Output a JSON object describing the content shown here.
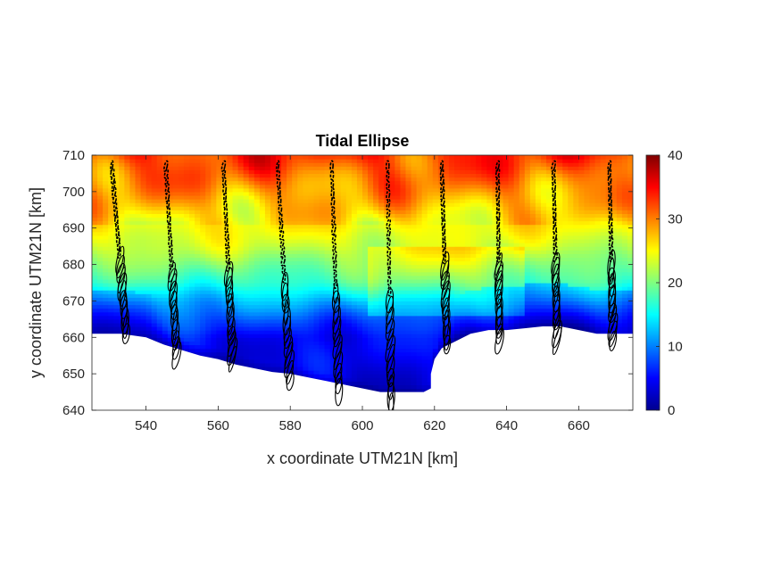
{
  "chart_data": {
    "type": "heatmap",
    "title": "Tidal Ellipse",
    "xlabel": "x coordinate UTM21N [km]",
    "ylabel": "y coordinate UTM21N [km]",
    "xlim": [
      525,
      675
    ],
    "ylim": [
      640,
      710
    ],
    "xticks": [
      540,
      560,
      580,
      600,
      620,
      640,
      660
    ],
    "yticks": [
      640,
      650,
      660,
      670,
      680,
      690,
      700,
      710
    ],
    "colorbar": {
      "colormap": "jet",
      "clim": [
        0,
        40
      ],
      "ticks": [
        0,
        10,
        20,
        30,
        40
      ]
    },
    "coastline": [
      [
        525,
        661
      ],
      [
        533,
        661
      ],
      [
        540,
        660
      ],
      [
        545,
        658
      ],
      [
        550,
        656.5
      ],
      [
        555,
        655
      ],
      [
        560,
        654
      ],
      [
        565,
        652.5
      ],
      [
        570,
        651.5
      ],
      [
        575,
        650.5
      ],
      [
        580,
        650
      ],
      [
        585,
        649
      ],
      [
        590,
        648
      ],
      [
        595,
        647
      ],
      [
        600,
        646
      ],
      [
        605,
        645
      ],
      [
        609,
        645
      ],
      [
        613,
        645
      ],
      [
        617,
        645
      ],
      [
        619,
        646
      ],
      [
        619,
        650
      ],
      [
        620,
        654
      ],
      [
        622,
        657
      ],
      [
        626,
        659
      ],
      [
        630,
        661
      ],
      [
        635,
        662
      ],
      [
        640,
        662
      ],
      [
        645,
        662.5
      ],
      [
        650,
        663
      ],
      [
        655,
        663
      ],
      [
        660,
        662
      ],
      [
        665,
        661
      ],
      [
        675,
        661
      ]
    ],
    "depth_field": {
      "description": "color value vs y (km), with coastal offset",
      "profile": [
        [
          640,
          3
        ],
        [
          660,
          5
        ],
        [
          665,
          8
        ],
        [
          670,
          12
        ],
        [
          675,
          17
        ],
        [
          680,
          20
        ],
        [
          685,
          23
        ],
        [
          690,
          25
        ],
        [
          695,
          27
        ],
        [
          700,
          29
        ],
        [
          705,
          31
        ],
        [
          710,
          33
        ]
      ]
    },
    "ellipse_transects": [
      {
        "x_top": 530.5,
        "x_bottom": 534.5,
        "y_top": 707,
        "y_bottom": 661
      },
      {
        "x_top": 545.5,
        "x_bottom": 548.5,
        "y_top": 707,
        "y_bottom": 655
      },
      {
        "x_top": 561.5,
        "x_bottom": 564.0,
        "y_top": 707,
        "y_bottom": 654
      },
      {
        "x_top": 576.5,
        "x_bottom": 580.0,
        "y_top": 707,
        "y_bottom": 648
      },
      {
        "x_top": 591.5,
        "x_bottom": 593.5,
        "y_top": 707,
        "y_bottom": 645
      },
      {
        "x_top": 607.0,
        "x_bottom": 608.0,
        "y_top": 707,
        "y_bottom": 641
      },
      {
        "x_top": 622.0,
        "x_bottom": 623.5,
        "y_top": 707,
        "y_bottom": 658
      },
      {
        "x_top": 637.5,
        "x_bottom": 638.0,
        "y_top": 707,
        "y_bottom": 659
      },
      {
        "x_top": 653.0,
        "x_bottom": 654.0,
        "y_top": 707,
        "y_bottom": 659
      },
      {
        "x_top": 668.5,
        "x_bottom": 669.5,
        "y_top": 707,
        "y_bottom": 659
      }
    ]
  }
}
